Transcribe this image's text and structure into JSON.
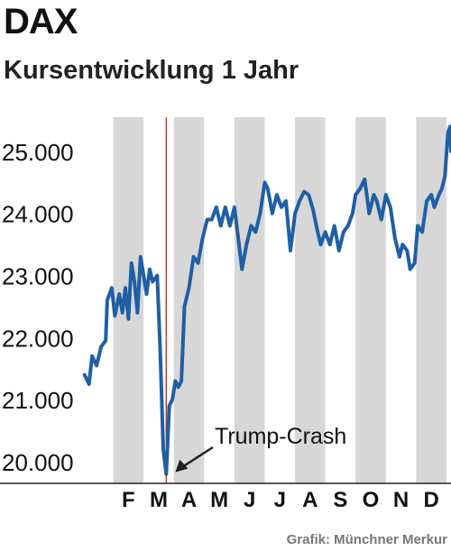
{
  "header": {
    "title": "DAX",
    "subtitle": "Kursentwicklung 1 Jahr"
  },
  "source": "Grafik: Münchner Merkur",
  "colors": {
    "line": "#1f5fa5",
    "band": "#d7d7d7",
    "event_line": "#c0392b",
    "axis": "#222222",
    "text": "#111111"
  },
  "chart_data": {
    "type": "line",
    "title": "DAX",
    "subtitle": "Kursentwicklung 1 Jahr",
    "xlabel": "",
    "ylabel": "",
    "ylim": [
      19650,
      25550
    ],
    "yticks": [
      20000,
      21000,
      22000,
      23000,
      24000,
      25000
    ],
    "ytick_labels": [
      "20.000",
      "21.000",
      "22.000",
      "23.000",
      "24.000",
      "25.000"
    ],
    "xlim": [
      0,
      12.15
    ],
    "months": [
      "F",
      "M",
      "A",
      "M",
      "J",
      "J",
      "A",
      "S",
      "O",
      "N",
      "D"
    ],
    "grid": "alternating shaded month bands",
    "annotation": {
      "text": "Trump-Crash",
      "x": 2.75,
      "y": 19800
    },
    "event_marker_x": 2.75,
    "series": [
      {
        "values": [
          [
            0.05,
            21400
          ],
          [
            0.2,
            21250
          ],
          [
            0.3,
            21700
          ],
          [
            0.45,
            21550
          ],
          [
            0.6,
            21850
          ],
          [
            0.75,
            21950
          ],
          [
            0.8,
            22600
          ],
          [
            0.95,
            22800
          ],
          [
            1.05,
            22350
          ],
          [
            1.2,
            22700
          ],
          [
            1.3,
            22400
          ],
          [
            1.4,
            22800
          ],
          [
            1.5,
            22300
          ],
          [
            1.6,
            23200
          ],
          [
            1.7,
            22900
          ],
          [
            1.8,
            22400
          ],
          [
            1.9,
            23300
          ],
          [
            2.0,
            23000
          ],
          [
            2.1,
            22700
          ],
          [
            2.2,
            23100
          ],
          [
            2.3,
            22900
          ],
          [
            2.45,
            23000
          ],
          [
            2.55,
            21800
          ],
          [
            2.65,
            20200
          ],
          [
            2.75,
            19800
          ],
          [
            2.85,
            20900
          ],
          [
            2.95,
            21000
          ],
          [
            3.05,
            21300
          ],
          [
            3.15,
            21200
          ],
          [
            3.25,
            21300
          ],
          [
            3.35,
            22500
          ],
          [
            3.5,
            22800
          ],
          [
            3.65,
            23300
          ],
          [
            3.8,
            23200
          ],
          [
            3.95,
            23600
          ],
          [
            4.1,
            23900
          ],
          [
            4.25,
            23900
          ],
          [
            4.4,
            24100
          ],
          [
            4.55,
            23800
          ],
          [
            4.7,
            24100
          ],
          [
            4.85,
            23800
          ],
          [
            5.0,
            24100
          ],
          [
            5.1,
            23700
          ],
          [
            5.25,
            23100
          ],
          [
            5.4,
            23500
          ],
          [
            5.55,
            23800
          ],
          [
            5.7,
            23700
          ],
          [
            5.85,
            24000
          ],
          [
            6.0,
            24500
          ],
          [
            6.1,
            24400
          ],
          [
            6.25,
            24000
          ],
          [
            6.4,
            24300
          ],
          [
            6.55,
            24100
          ],
          [
            6.7,
            24200
          ],
          [
            6.85,
            23400
          ],
          [
            7.0,
            24000
          ],
          [
            7.15,
            24200
          ],
          [
            7.3,
            24350
          ],
          [
            7.45,
            24300
          ],
          [
            7.6,
            24050
          ],
          [
            7.75,
            23700
          ],
          [
            7.85,
            23500
          ],
          [
            8.0,
            23700
          ],
          [
            8.15,
            23500
          ],
          [
            8.3,
            23800
          ],
          [
            8.45,
            23400
          ],
          [
            8.6,
            23700
          ],
          [
            8.75,
            23800
          ],
          [
            8.9,
            24000
          ],
          [
            9.0,
            24300
          ],
          [
            9.15,
            24400
          ],
          [
            9.3,
            24550
          ],
          [
            9.45,
            24000
          ],
          [
            9.6,
            24300
          ],
          [
            9.7,
            24200
          ],
          [
            9.85,
            23900
          ],
          [
            10.0,
            24300
          ],
          [
            10.15,
            24100
          ],
          [
            10.3,
            23600
          ],
          [
            10.45,
            23300
          ],
          [
            10.55,
            23500
          ],
          [
            10.7,
            23400
          ],
          [
            10.8,
            23100
          ],
          [
            10.95,
            23200
          ],
          [
            11.05,
            23800
          ],
          [
            11.2,
            23700
          ],
          [
            11.35,
            24200
          ],
          [
            11.5,
            24300
          ],
          [
            11.6,
            24100
          ],
          [
            11.75,
            24300
          ],
          [
            11.85,
            24400
          ],
          [
            11.95,
            24600
          ],
          [
            12.05,
            25300
          ],
          [
            12.12,
            25400
          ],
          [
            12.15,
            25000
          ]
        ]
      }
    ]
  }
}
